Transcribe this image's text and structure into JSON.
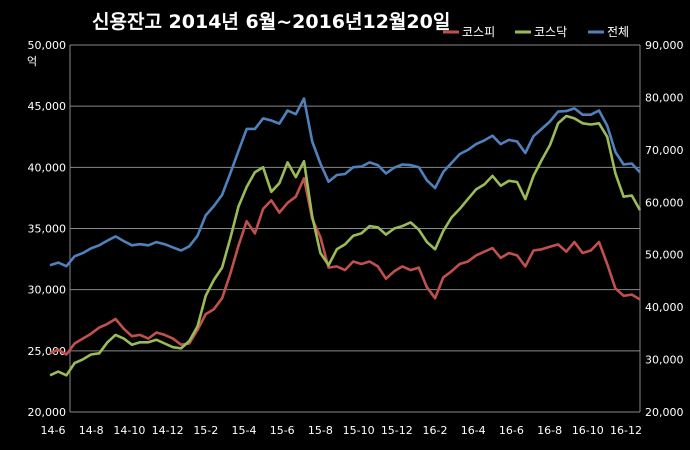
{
  "chart_data": {
    "type": "line",
    "title": "신용잔고  2014년 6월~2016년12월20일",
    "ylabel_left": "억",
    "left_axis": {
      "min": 20000,
      "max": 50000,
      "ticks": [
        "20,000",
        "25,000",
        "30,000",
        "35,000",
        "40,000",
        "45,000",
        "50,000"
      ]
    },
    "right_axis": {
      "min": 20000,
      "max": 90000,
      "ticks": [
        "20,000",
        "30,000",
        "40,000",
        "50,000",
        "60,000",
        "70,000",
        "80,000",
        "90,000"
      ]
    },
    "x_ticks": [
      "14-6",
      "14-8",
      "14-10",
      "14-12",
      "15-2",
      "15-4",
      "15-6",
      "15-8",
      "15-10",
      "15-12",
      "16-2",
      "16-4",
      "16-6",
      "16-8",
      "16-10",
      "16-12"
    ],
    "grid": "horizontal",
    "legend_position": "top-right",
    "series": [
      {
        "name": "코스피",
        "axis": "left",
        "color": "#C0504D",
        "values": [
          24800,
          25100,
          24700,
          25600,
          26000,
          26400,
          26900,
          27200,
          27600,
          26800,
          26200,
          26300,
          26000,
          26500,
          26300,
          26000,
          25500,
          25600,
          26700,
          28000,
          28400,
          29300,
          31300,
          33600,
          35600,
          34600,
          36600,
          37300,
          36300,
          37100,
          37600,
          39100,
          35800,
          34300,
          31800,
          31900,
          31600,
          32300,
          32100,
          32300,
          31900,
          30900,
          31500,
          31900,
          31600,
          31800,
          30200,
          29300,
          31000,
          31500,
          32100,
          32300,
          32800,
          33100,
          33400,
          32600,
          33000,
          32800,
          31900,
          33200,
          33300,
          33500,
          33700,
          33100,
          33900,
          33000,
          33200,
          33900,
          32100,
          30100,
          29500,
          29600,
          29200
        ]
      },
      {
        "name": "코스닥",
        "axis": "left",
        "color": "#9BBB59",
        "values": [
          23000,
          23300,
          23000,
          24000,
          24300,
          24700,
          24800,
          25700,
          26300,
          26000,
          25500,
          25700,
          25700,
          25900,
          25600,
          25300,
          25200,
          25800,
          27000,
          29500,
          30800,
          31800,
          34200,
          36800,
          38400,
          39600,
          40000,
          38000,
          38700,
          40400,
          39200,
          40500,
          36000,
          33000,
          32000,
          33300,
          33700,
          34400,
          34600,
          35200,
          35100,
          34500,
          35000,
          35200,
          35500,
          34900,
          33900,
          33300,
          34800,
          35900,
          36600,
          37400,
          38200,
          38600,
          39300,
          38500,
          38900,
          38800,
          37400,
          39300,
          40600,
          41800,
          43600,
          44200,
          44000,
          43600,
          43500,
          43600,
          42500,
          39500,
          37600,
          37700,
          36500
        ]
      },
      {
        "name": "전체",
        "axis": "right",
        "color": "#4F81BD",
        "values": [
          48000,
          48500,
          47800,
          49700,
          50300,
          51200,
          51800,
          52700,
          53500,
          52600,
          51800,
          52000,
          51800,
          52400,
          52000,
          51400,
          50800,
          51600,
          53600,
          57500,
          59300,
          61400,
          65500,
          69800,
          74000,
          74000,
          76000,
          75600,
          75000,
          77500,
          76800,
          79800,
          71600,
          67400,
          63900,
          65200,
          65400,
          66700,
          66800,
          67600,
          67100,
          65500,
          66600,
          67200,
          67100,
          66700,
          64200,
          62700,
          65800,
          67500,
          69200,
          70000,
          71100,
          71800,
          72700,
          71100,
          71900,
          71600,
          69400,
          72600,
          74000,
          75400,
          77300,
          77400,
          77900,
          76700,
          76700,
          77500,
          74600,
          69600,
          67200,
          67400,
          65700
        ]
      }
    ]
  }
}
